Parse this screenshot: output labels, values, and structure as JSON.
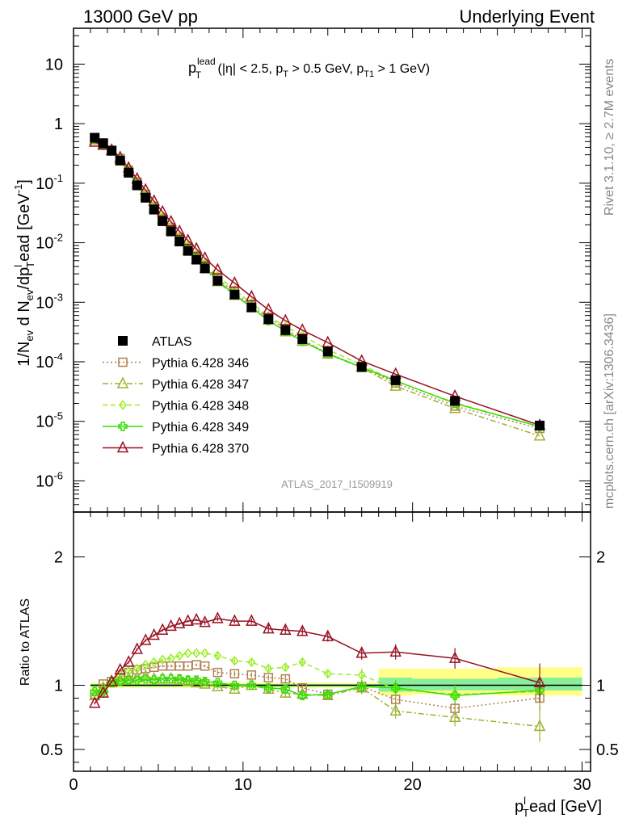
{
  "header": {
    "left": "13000 GeV pp",
    "right": "Underlying Event"
  },
  "side_labels": {
    "rivet": "Rivet 3.1.10, ≥ 2.7M events",
    "mcplots": "mcplots.cern.ch [arXiv:1306.3436]"
  },
  "chart_data": [
    {
      "type": "line",
      "title": "p_T^lead (|η| < 2.5, p_T > 0.5 GeV, p_T1 > 1 GeV)",
      "title_parts": {
        "p": "p",
        "sub": "T",
        "sup": "lead",
        "rest1": " (|η| < 2.5, p",
        "rest2": " > 0.5 GeV, p",
        "sub2": "T1",
        "rest3": " > 1 GeV)"
      },
      "watermark": "ATLAS_2017_I1509919",
      "ylabel": "1/N_ev d N_ev/dp_T^lead [GeV^-1]",
      "ylabel_parts": {
        "a": "1/N",
        "sub_ev": "ev",
        "b": " d N",
        "c": "/dp",
        "sub_T": "T",
        "sup_l": "l",
        "d": "ead [GeV",
        "sup_m1": "-1",
        "e": "]"
      },
      "yscale": "log",
      "ylim": [
        3e-07,
        40
      ],
      "xlim": [
        0,
        30.5
      ],
      "ytick_labels": [
        {
          "base": "10",
          "exp": "-6"
        },
        {
          "base": "10",
          "exp": "-5"
        },
        {
          "base": "10",
          "exp": "-4"
        },
        {
          "base": "10",
          "exp": "-3"
        },
        {
          "base": "10",
          "exp": "-2"
        },
        {
          "base": "10",
          "exp": "-1"
        },
        {
          "base": "1",
          "exp": ""
        },
        {
          "base": "10",
          "exp": ""
        }
      ],
      "legend_placement": "left",
      "x": [
        1.25,
        1.75,
        2.25,
        2.75,
        3.25,
        3.75,
        4.25,
        4.75,
        5.25,
        5.75,
        6.25,
        6.75,
        7.25,
        7.75,
        8.5,
        9.5,
        10.5,
        11.5,
        12.5,
        13.5,
        15.0,
        17.0,
        19.0,
        22.5,
        27.5
      ],
      "series": [
        {
          "name": "ATLAS",
          "color": "#000000",
          "marker": "square-filled",
          "line": "none",
          "values": [
            0.58,
            0.47,
            0.35,
            0.24,
            0.15,
            0.092,
            0.057,
            0.036,
            0.023,
            0.0155,
            0.0105,
            0.0073,
            0.0052,
            0.0037,
            0.0023,
            0.00135,
            0.00082,
            0.00052,
            0.00034,
            0.00024,
            0.000148,
            8.2e-05,
            4.9e-05,
            2.2e-05,
            8.5e-06
          ]
        },
        {
          "name": "Pythia 6.428 346",
          "color": "#b08050",
          "marker": "square-open",
          "line": "dotted",
          "values": [
            0.54,
            0.44,
            0.36,
            0.26,
            0.165,
            0.104,
            0.065,
            0.041,
            0.026,
            0.0179,
            0.0121,
            0.0084,
            0.006,
            0.0042,
            0.0025,
            0.00147,
            0.00088,
            0.00055,
            0.00036,
            0.000235,
            0.000138,
            8.1e-05,
            4.4e-05,
            1.8e-05,
            7.6e-06
          ]
        },
        {
          "name": "Pythia 6.428 347",
          "color": "#a0b030",
          "marker": "triangle-open",
          "line": "dashdot",
          "values": [
            0.53,
            0.43,
            0.35,
            0.25,
            0.158,
            0.098,
            0.061,
            0.038,
            0.0243,
            0.0163,
            0.0109,
            0.0075,
            0.0053,
            0.0037,
            0.00222,
            0.00131,
            0.00082,
            0.000505,
            0.00032,
            0.000222,
            0.000135,
            8e-05,
            3.9e-05,
            1.65e-05,
            5.7e-06
          ]
        },
        {
          "name": "Pythia 6.428 348",
          "color": "#99ee22",
          "marker": "diamond-open",
          "line": "dashed",
          "values": [
            0.56,
            0.45,
            0.36,
            0.26,
            0.166,
            0.104,
            0.066,
            0.042,
            0.0275,
            0.0187,
            0.0129,
            0.0091,
            0.0065,
            0.0046,
            0.0028,
            0.00161,
            0.00097,
            0.00059,
            0.00039,
            0.000275,
            0.00016,
            8.9e-05,
            4.75e-05,
            2.05e-05,
            8.1e-06
          ]
        },
        {
          "name": "Pythia 6.428 349",
          "color": "#33dd00",
          "marker": "cross-open",
          "line": "solid",
          "values": [
            0.55,
            0.44,
            0.35,
            0.245,
            0.155,
            0.096,
            0.059,
            0.037,
            0.024,
            0.0163,
            0.011,
            0.0076,
            0.0054,
            0.0038,
            0.0023,
            0.00135,
            0.00082,
            0.00049,
            0.00033,
            0.000222,
            0.000137,
            8.1e-05,
            4.8e-05,
            2e-05,
            8.2e-06
          ]
        },
        {
          "name": "Pythia 6.428 370",
          "color": "#991122",
          "marker": "triangle-open",
          "line": "solid",
          "values": [
            0.49,
            0.44,
            0.36,
            0.27,
            0.18,
            0.118,
            0.077,
            0.05,
            0.033,
            0.0225,
            0.0155,
            0.0109,
            0.0079,
            0.0055,
            0.0035,
            0.0021,
            0.00124,
            0.00075,
            0.00049,
            0.00034,
            0.00021,
            0.000103,
            6.2e-05,
            2.65e-05,
            8.6e-06
          ]
        }
      ]
    },
    {
      "type": "line",
      "title": "",
      "ylabel": "Ratio to ATLAS",
      "xlabel": "p_T^lead [GeV]",
      "xlabel_parts": {
        "p": "p",
        "sub": "T",
        "sup": "l",
        "rest": "ead [GeV]"
      },
      "xlim": [
        0,
        30.5
      ],
      "ylim": [
        0.33,
        2.35
      ],
      "xtick_labels": [
        "0",
        "10",
        "20",
        "30"
      ],
      "ytick_labels": [
        "0.5",
        "1",
        "2"
      ],
      "bands": [
        {
          "x": [
            1.0,
            18.0
          ],
          "yellow": [
            0.98,
            1.02
          ],
          "green": [
            0.99,
            1.01
          ]
        },
        {
          "x": [
            18.0,
            20.0
          ],
          "yellow": [
            0.92,
            1.13
          ],
          "green": [
            0.95,
            1.06
          ]
        },
        {
          "x": [
            20.0,
            25.0
          ],
          "yellow": [
            0.93,
            1.13
          ],
          "green": [
            0.96,
            1.05
          ]
        },
        {
          "x": [
            25.0,
            30.0
          ],
          "yellow": [
            0.92,
            1.14
          ],
          "green": [
            0.96,
            1.06
          ]
        }
      ],
      "x": [
        1.25,
        1.75,
        2.25,
        2.75,
        3.25,
        3.75,
        4.25,
        4.75,
        5.25,
        5.75,
        6.25,
        6.75,
        7.25,
        7.75,
        8.5,
        9.5,
        10.5,
        11.5,
        12.5,
        13.5,
        15.0,
        17.0,
        19.0,
        22.5,
        27.5
      ],
      "series": [
        {
          "name": "Pythia 6.428 346",
          "color": "#b08050",
          "marker": "square-open",
          "line": "dotted",
          "values": [
            0.93,
            1.01,
            1.03,
            1.08,
            1.1,
            1.12,
            1.13,
            1.14,
            1.15,
            1.15,
            1.15,
            1.15,
            1.16,
            1.15,
            1.1,
            1.09,
            1.08,
            1.06,
            1.05,
            0.98,
            0.93,
            0.99,
            0.89,
            0.82,
            0.9
          ],
          "errors": [
            0.01,
            0.01,
            0.01,
            0.01,
            0.01,
            0.01,
            0.01,
            0.01,
            0.01,
            0.01,
            0.01,
            0.01,
            0.01,
            0.01,
            0.02,
            0.02,
            0.02,
            0.02,
            0.03,
            0.03,
            0.03,
            0.05,
            0.06,
            0.07,
            0.1
          ]
        },
        {
          "name": "Pythia 6.428 347",
          "color": "#a0b030",
          "marker": "triangle-open",
          "line": "dashdot",
          "values": [
            0.92,
            0.98,
            1.02,
            1.04,
            1.05,
            1.06,
            1.07,
            1.05,
            1.05,
            1.05,
            1.04,
            1.03,
            1.02,
            1.01,
            0.99,
            0.97,
            1.0,
            0.97,
            0.94,
            0.93,
            0.92,
            0.98,
            0.8,
            0.75,
            0.68
          ],
          "errors": [
            0.01,
            0.01,
            0.01,
            0.01,
            0.01,
            0.01,
            0.01,
            0.01,
            0.01,
            0.01,
            0.01,
            0.01,
            0.01,
            0.01,
            0.02,
            0.02,
            0.02,
            0.02,
            0.03,
            0.03,
            0.03,
            0.05,
            0.06,
            0.07,
            0.12
          ]
        },
        {
          "name": "Pythia 6.428 348",
          "color": "#99ee22",
          "marker": "diamond-open",
          "line": "dashed",
          "values": [
            0.96,
            0.96,
            1.03,
            1.08,
            1.11,
            1.13,
            1.16,
            1.18,
            1.2,
            1.21,
            1.23,
            1.25,
            1.25,
            1.25,
            1.23,
            1.19,
            1.18,
            1.13,
            1.14,
            1.18,
            1.09,
            1.08,
            0.97,
            0.93,
            0.95
          ],
          "errors": [
            0.01,
            0.01,
            0.01,
            0.01,
            0.01,
            0.01,
            0.01,
            0.01,
            0.01,
            0.01,
            0.01,
            0.01,
            0.01,
            0.01,
            0.02,
            0.02,
            0.02,
            0.02,
            0.03,
            0.03,
            0.03,
            0.05,
            0.06,
            0.07,
            0.1
          ]
        },
        {
          "name": "Pythia 6.428 349",
          "color": "#33dd00",
          "marker": "cross-open",
          "line": "solid",
          "values": [
            0.95,
            0.95,
            1.02,
            1.03,
            1.04,
            1.04,
            1.05,
            1.04,
            1.05,
            1.05,
            1.05,
            1.04,
            1.04,
            1.03,
            1.02,
            1.0,
            1.0,
            0.98,
            0.97,
            0.92,
            0.93,
            0.99,
            0.98,
            0.92,
            0.96
          ],
          "errors": [
            0.01,
            0.01,
            0.01,
            0.01,
            0.01,
            0.01,
            0.01,
            0.01,
            0.01,
            0.01,
            0.01,
            0.01,
            0.01,
            0.01,
            0.02,
            0.02,
            0.02,
            0.02,
            0.03,
            0.03,
            0.03,
            0.05,
            0.06,
            0.07,
            0.1
          ]
        },
        {
          "name": "Pythia 6.428 370",
          "color": "#991122",
          "marker": "triangle-open",
          "line": "solid",
          "values": [
            0.86,
            0.94,
            1.03,
            1.12,
            1.18,
            1.28,
            1.35,
            1.39,
            1.43,
            1.46,
            1.48,
            1.5,
            1.51,
            1.49,
            1.52,
            1.5,
            1.5,
            1.44,
            1.43,
            1.42,
            1.38,
            1.25,
            1.26,
            1.21,
            1.02
          ],
          "errors": [
            0.01,
            0.01,
            0.01,
            0.01,
            0.01,
            0.01,
            0.01,
            0.01,
            0.01,
            0.01,
            0.01,
            0.01,
            0.01,
            0.02,
            0.02,
            0.02,
            0.02,
            0.03,
            0.03,
            0.03,
            0.04,
            0.05,
            0.06,
            0.08,
            0.15
          ]
        }
      ]
    }
  ]
}
